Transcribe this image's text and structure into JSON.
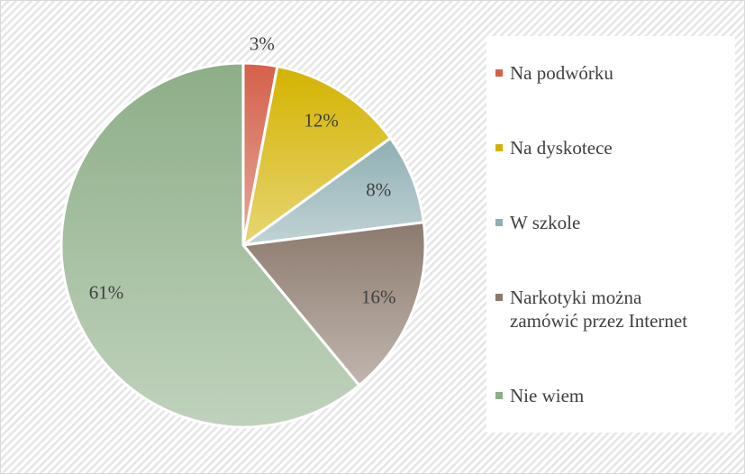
{
  "chart_data": {
    "type": "pie",
    "categories": [
      "Na podwórku",
      "Na dyskotece",
      "W szkole",
      "Narkotyki można zamówić przez Internet",
      "Nie wiem"
    ],
    "values": [
      3,
      12,
      8,
      16,
      61
    ],
    "value_labels": [
      "3%",
      "12%",
      "8%",
      "16%",
      "61%"
    ],
    "colors": [
      "#d4604b",
      "#d4b300",
      "#8fafb3",
      "#8c7a6d",
      "#8dae87"
    ],
    "legend": "right"
  }
}
